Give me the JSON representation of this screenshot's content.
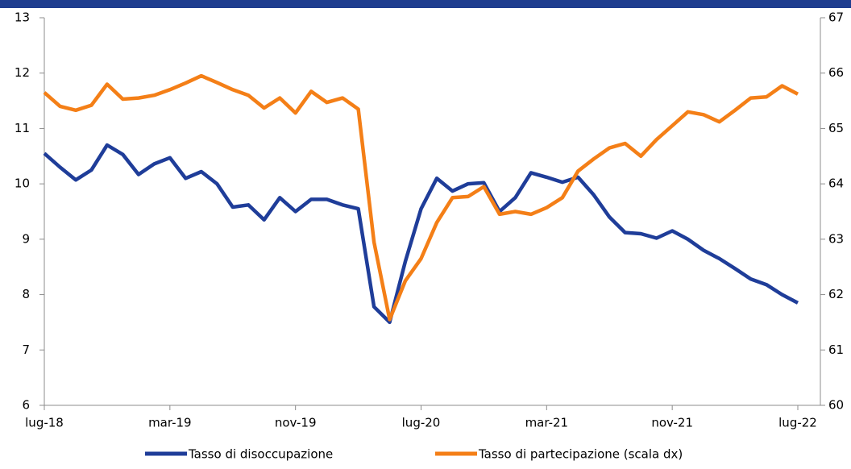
{
  "chart_data": {
    "type": "line",
    "categories": [
      "lug-18",
      null,
      null,
      null,
      null,
      null,
      null,
      null,
      "mar-19",
      null,
      null,
      null,
      null,
      null,
      null,
      null,
      "nov-19",
      null,
      null,
      null,
      null,
      null,
      null,
      null,
      "lug-20",
      null,
      null,
      null,
      null,
      null,
      null,
      null,
      "mar-21",
      null,
      null,
      null,
      null,
      null,
      null,
      null,
      "nov-21",
      null,
      null,
      null,
      null,
      null,
      null,
      null,
      "lug-22"
    ],
    "series": [
      {
        "name": "Tasso di disoccupazione",
        "color": "#1f3d99",
        "values": [
          10.55,
          10.3,
          10.07,
          10.25,
          10.7,
          10.53,
          10.17,
          10.36,
          10.47,
          10.1,
          10.22,
          10.0,
          9.58,
          9.62,
          9.35,
          9.75,
          9.5,
          9.72,
          9.72,
          9.62,
          9.55,
          7.78,
          7.5,
          8.6,
          9.55,
          10.1,
          9.87,
          10.0,
          10.02,
          9.5,
          9.75,
          10.2,
          10.12,
          10.03,
          10.12,
          9.8,
          9.4,
          9.12,
          9.1,
          9.02,
          9.15,
          9.0,
          8.8,
          8.65,
          8.47,
          8.28,
          8.18,
          8.0,
          7.85
        ]
      },
      {
        "name": "Tasso di partecipazione (scala dx)",
        "color": "#f47f17",
        "axis": "y2",
        "values": [
          65.65,
          65.4,
          65.33,
          65.42,
          65.8,
          65.53,
          65.55,
          65.6,
          65.7,
          65.82,
          65.95,
          65.83,
          65.7,
          65.6,
          65.37,
          65.55,
          65.28,
          65.67,
          65.47,
          65.55,
          65.35,
          62.95,
          61.55,
          62.25,
          62.65,
          63.3,
          63.75,
          63.77,
          63.95,
          63.45,
          63.5,
          63.45,
          63.57,
          63.75,
          64.23,
          64.45,
          64.65,
          64.73,
          64.5,
          64.8,
          65.05,
          65.3,
          65.25,
          65.12,
          65.33,
          65.55,
          65.57,
          65.77,
          65.62
        ]
      }
    ],
    "ylim": [
      6,
      13
    ],
    "yticks": [
      6,
      7,
      8,
      9,
      10,
      11,
      12,
      13
    ],
    "y2lim": [
      60,
      67
    ],
    "y2ticks": [
      60,
      61,
      62,
      63,
      64,
      65,
      66,
      67
    ]
  }
}
